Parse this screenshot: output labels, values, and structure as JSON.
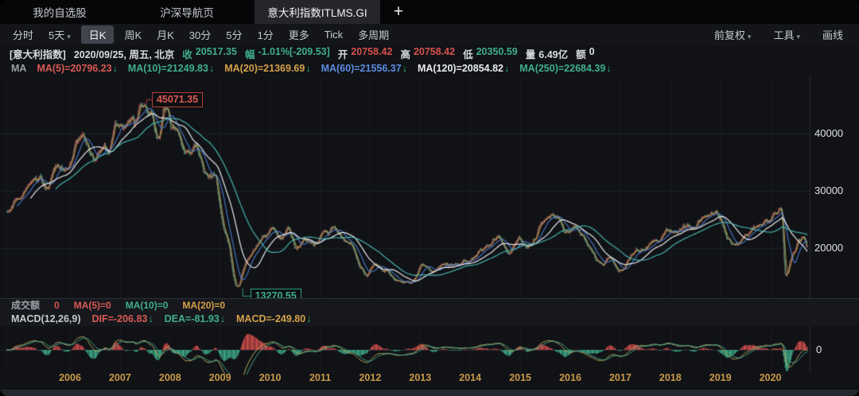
{
  "tabs": {
    "items": [
      {
        "label": "我的自选股",
        "active": false
      },
      {
        "label": "沪深导航页",
        "active": false
      },
      {
        "label": "意大利指数ITLMS.GI",
        "active": true
      }
    ],
    "add_label": "+"
  },
  "toolbar": {
    "left_items": [
      {
        "label": "分时",
        "caret": false,
        "selected": false
      },
      {
        "label": "5天",
        "caret": true,
        "selected": false
      },
      {
        "label": "日K",
        "caret": false,
        "selected": true
      },
      {
        "label": "周K",
        "caret": false,
        "selected": false
      },
      {
        "label": "月K",
        "caret": false,
        "selected": false
      },
      {
        "label": "30分",
        "caret": false,
        "selected": false
      },
      {
        "label": "5分",
        "caret": false,
        "selected": false
      },
      {
        "label": "1分",
        "caret": false,
        "selected": false
      },
      {
        "label": "更多",
        "caret": false,
        "selected": false
      },
      {
        "label": "Tick",
        "caret": false,
        "selected": false
      },
      {
        "label": "多周期",
        "caret": false,
        "selected": false
      }
    ],
    "right_items": [
      {
        "label": "前复权",
        "caret": true
      },
      {
        "label": "工具",
        "caret": true
      },
      {
        "label": "画线",
        "caret": false
      }
    ]
  },
  "info_bar": {
    "symbol": "[意大利指数]",
    "datetime": "2020/09/25, 周五, 北京",
    "fields": [
      {
        "label": "收",
        "value": "20517.35",
        "label_color": "#3fae8e",
        "value_color": "#3fae8e"
      },
      {
        "label": "幅",
        "value": "-1.01%[-209.53]",
        "label_color": "#3fae8e",
        "value_color": "#3fae8e"
      },
      {
        "label": "开",
        "value": "20758.42",
        "label_color": "#d9dcdf",
        "value_color": "#d8514e"
      },
      {
        "label": "高",
        "value": "20758.42",
        "label_color": "#d9dcdf",
        "value_color": "#d8514e"
      },
      {
        "label": "低",
        "value": "20350.59",
        "label_color": "#d9dcdf",
        "value_color": "#3fae8e"
      },
      {
        "label": "量",
        "value": "6.49亿",
        "label_color": "#d9dcdf",
        "value_color": "#d9dcdf"
      },
      {
        "label": "额",
        "value": "0",
        "label_color": "#d9dcdf",
        "value_color": "#d9dcdf"
      }
    ]
  },
  "ma_row": {
    "prefix": "MA",
    "items": [
      {
        "label": "MA(5)=20796.23",
        "color": "#d85a54",
        "arrow": "↓"
      },
      {
        "label": "MA(10)=21249.83",
        "color": "#3fae8e",
        "arrow": "↓"
      },
      {
        "label": "MA(20)=21369.69",
        "color": "#d7a04a",
        "arrow": "↓"
      },
      {
        "label": "MA(60)=21556.37",
        "color": "#5b8ce0",
        "arrow": "↓"
      },
      {
        "label": "MA(120)=20854.82",
        "color": "#e9ebee",
        "arrow": "↓"
      },
      {
        "label": "MA(250)=22684.39",
        "color": "#3fae8e",
        "arrow": "↓"
      }
    ]
  },
  "volume_row": {
    "title": "成交额",
    "value": "0",
    "value_color": "#d8514e",
    "items": [
      {
        "label": "MA(5)=0",
        "color": "#d85a54"
      },
      {
        "label": "MA(10)=0",
        "color": "#3fae8e"
      },
      {
        "label": "MA(20)=0",
        "color": "#d7a04a"
      }
    ]
  },
  "macd_row": {
    "title": "MACD(12,26,9)",
    "items": [
      {
        "label": "DIF=-206.83",
        "color": "#d85a54",
        "arrow": "↓"
      },
      {
        "label": "DEA=-81.93",
        "color": "#3fae8e",
        "arrow": "↓"
      },
      {
        "label": "MACD=-249.80",
        "color": "#d7a04a",
        "arrow": "↓"
      }
    ]
  },
  "chart_data": {
    "type": "candlestick",
    "title": "意大利指数 ITLMS.GI 日K (前复权)",
    "ohlc_last": {
      "date": "2020/09/25",
      "open": 20758.42,
      "high": 20758.42,
      "low": 20350.59,
      "close": 20517.35,
      "change_pct": -1.01,
      "change": -209.53,
      "volume": "6.49亿"
    },
    "y_axis": {
      "ticks": [
        40000,
        30000,
        20000
      ],
      "side": "right"
    },
    "x_axis": {
      "years": [
        2006,
        2007,
        2008,
        2009,
        2010,
        2011,
        2012,
        2013,
        2014,
        2015,
        2016,
        2017,
        2018,
        2019,
        2020
      ]
    },
    "annotations": {
      "max": {
        "text": "45071.35",
        "time": 2007.43,
        "value": 45071.35
      },
      "min": {
        "text": "13270.55",
        "time": 2009.35,
        "value": 13270.55
      }
    },
    "macd_zero_label": "0",
    "series_anchors": [
      [
        2004.73,
        26800
      ],
      [
        2005.08,
        30000
      ],
      [
        2005.4,
        31500
      ],
      [
        2005.52,
        30600
      ],
      [
        2005.79,
        34900
      ],
      [
        2005.92,
        33400
      ],
      [
        2006.24,
        39700
      ],
      [
        2006.45,
        35900
      ],
      [
        2006.67,
        38000
      ],
      [
        2006.76,
        37000
      ],
      [
        2006.99,
        42400
      ],
      [
        2007.1,
        41000
      ],
      [
        2007.24,
        43500
      ],
      [
        2007.3,
        42400
      ],
      [
        2007.43,
        45071.35
      ],
      [
        2007.62,
        43400
      ],
      [
        2007.78,
        39400
      ],
      [
        2007.89,
        43900
      ],
      [
        2008.07,
        40400
      ],
      [
        2008.29,
        36000
      ],
      [
        2008.5,
        37500
      ],
      [
        2008.77,
        31400
      ],
      [
        2008.89,
        32600
      ],
      [
        2009.1,
        23000
      ],
      [
        2009.35,
        13270.55
      ],
      [
        2009.56,
        18500
      ],
      [
        2009.85,
        21800
      ],
      [
        2010.04,
        22800
      ],
      [
        2010.2,
        21500
      ],
      [
        2010.36,
        23300
      ],
      [
        2010.52,
        20300
      ],
      [
        2010.67,
        21500
      ],
      [
        2010.88,
        20500
      ],
      [
        2011.09,
        22300
      ],
      [
        2011.28,
        23200
      ],
      [
        2011.6,
        20800
      ],
      [
        2011.79,
        16600
      ],
      [
        2011.95,
        15500
      ],
      [
        2012.11,
        17300
      ],
      [
        2012.31,
        16300
      ],
      [
        2012.5,
        14200
      ],
      [
        2012.81,
        13600
      ],
      [
        2013.03,
        16800
      ],
      [
        2013.27,
        15800
      ],
      [
        2013.47,
        17000
      ],
      [
        2013.7,
        16900
      ],
      [
        2013.95,
        17800
      ],
      [
        2014.33,
        20280
      ],
      [
        2014.57,
        22360
      ],
      [
        2014.78,
        19600
      ],
      [
        2014.95,
        21700
      ],
      [
        2015.14,
        20560
      ],
      [
        2015.57,
        25560
      ],
      [
        2015.73,
        25830
      ],
      [
        2015.92,
        22360
      ],
      [
        2016.08,
        24000
      ],
      [
        2016.63,
        17200
      ],
      [
        2016.8,
        18470
      ],
      [
        2016.97,
        15970
      ],
      [
        2017.32,
        19580
      ],
      [
        2017.55,
        20560
      ],
      [
        2017.8,
        21700
      ],
      [
        2018.03,
        23300
      ],
      [
        2018.4,
        23750
      ],
      [
        2018.65,
        25560
      ],
      [
        2018.91,
        26100
      ],
      [
        2019.0,
        24700
      ],
      [
        2019.15,
        21700
      ],
      [
        2019.31,
        20280
      ],
      [
        2019.5,
        22360
      ],
      [
        2019.7,
        23750
      ],
      [
        2019.95,
        24700
      ],
      [
        2020.1,
        26500
      ],
      [
        2020.21,
        27350
      ],
      [
        2020.31,
        15420
      ],
      [
        2020.45,
        18890
      ],
      [
        2020.58,
        21400
      ],
      [
        2020.66,
        22200
      ],
      [
        2020.74,
        20517.35
      ]
    ],
    "ma_lines": [
      {
        "name": "MA5",
        "weeks": 1,
        "color": "#cf5a52",
        "width": 0.7,
        "alpha": 0.8
      },
      {
        "name": "MA10",
        "weeks": 2,
        "color": "#3fae8e",
        "width": 0.7,
        "alpha": 0.8
      },
      {
        "name": "MA20",
        "weeks": 4,
        "color": "#d7a04a",
        "width": 0.9,
        "alpha": 0.9
      },
      {
        "name": "MA60",
        "weeks": 12,
        "color": "#4d7fd6",
        "width": 1.1,
        "alpha": 0.95
      },
      {
        "name": "MA120",
        "weeks": 26,
        "color": "#e9ebee",
        "width": 1.2,
        "alpha": 1
      },
      {
        "name": "MA250",
        "weeks": 52,
        "color": "#48b3ad",
        "width": 1.2,
        "alpha": 1
      }
    ],
    "macd": {
      "fast": 12,
      "slow": 26,
      "signal": 9,
      "dif_color": "#c0ab62",
      "dea_color": "#46ab8e"
    },
    "colors": {
      "up": "#d8514e",
      "down": "#41b08c",
      "grid": "#1b1e23",
      "grid_vertical": "#181b20",
      "axis_line": "#2a2d33",
      "background": "#101216",
      "year_label": "#c89a4a"
    }
  }
}
